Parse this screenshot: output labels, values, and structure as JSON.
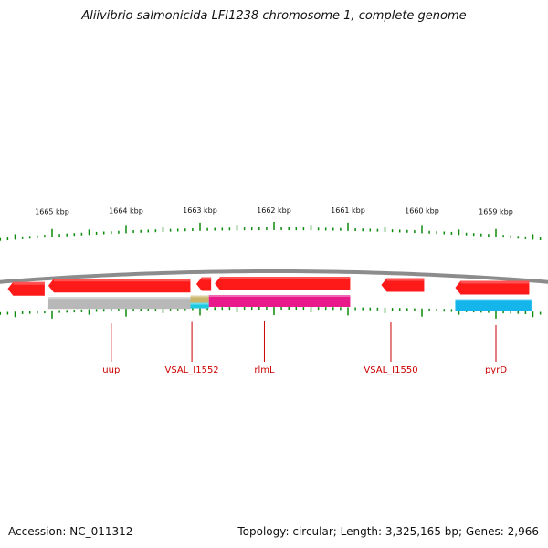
{
  "title": "Aliivibrio salmonicida LFI1238 chromosome 1, complete genome",
  "accession_text": "Accession: NC_011312",
  "summary_text": "Topology: circular; Length: 3,325,165 bp; Genes: 2,966",
  "colors": {
    "tick": "#0b8a0b",
    "cds": "#ff1a1a",
    "label": "#cc0000",
    "backbone": "#8c8c8c"
  },
  "ruler": {
    "major_labels": [
      "1665 kbp",
      "1664 kbp",
      "1663 kbp",
      "1662 kbp",
      "1661 kbp",
      "1660 kbp",
      "1659 kbp"
    ],
    "major_kbp": [
      1665,
      1664,
      1663,
      1662,
      1661,
      1660,
      1659
    ],
    "minor_step_kbp": 0.1
  },
  "features": [
    {
      "type": "cds",
      "strand": "+",
      "start_kbp": 1665.6,
      "end_kbp": 1665.1,
      "color": "#ff1a1a"
    },
    {
      "type": "cds",
      "strand": "+",
      "start_kbp": 1665.05,
      "end_kbp": 1663.13,
      "color": "#ff1a1a"
    },
    {
      "type": "cds",
      "strand": "+",
      "start_kbp": 1663.05,
      "end_kbp": 1662.85,
      "color": "#ff1a1a"
    },
    {
      "type": "cds",
      "strand": "+",
      "start_kbp": 1662.8,
      "end_kbp": 1660.97,
      "color": "#ff1a1a"
    },
    {
      "type": "cds",
      "strand": "+",
      "start_kbp": 1660.55,
      "end_kbp": 1659.97,
      "color": "#ff1a1a"
    },
    {
      "type": "cds",
      "strand": "+",
      "start_kbp": 1659.55,
      "end_kbp": 1658.55,
      "color": "#ff1a1a"
    },
    {
      "type": "region",
      "strand": "-",
      "start_kbp": 1665.05,
      "end_kbp": 1663.13,
      "color": "#b8b8b8"
    },
    {
      "type": "region",
      "strand": "-",
      "start_kbp": 1663.13,
      "end_kbp": 1662.88,
      "color": "#c9b46a"
    },
    {
      "type": "region",
      "strand": "-",
      "start_kbp": 1663.13,
      "end_kbp": 1662.88,
      "color": "#1ec8e0",
      "lower": true
    },
    {
      "type": "region",
      "strand": "-",
      "start_kbp": 1662.88,
      "end_kbp": 1660.97,
      "color": "#e8198a"
    },
    {
      "type": "region",
      "strand": "-",
      "start_kbp": 1659.55,
      "end_kbp": 1658.52,
      "color": "#13b5ea"
    }
  ],
  "gene_labels": [
    {
      "name": "uup",
      "kbp": 1664.2
    },
    {
      "name": "VSAL_I1552",
      "kbp": 1663.11
    },
    {
      "name": "rlmL",
      "kbp": 1662.13
    },
    {
      "name": "VSAL_I1550",
      "kbp": 1660.42
    },
    {
      "name": "pyrD",
      "kbp": 1659.0
    }
  ]
}
